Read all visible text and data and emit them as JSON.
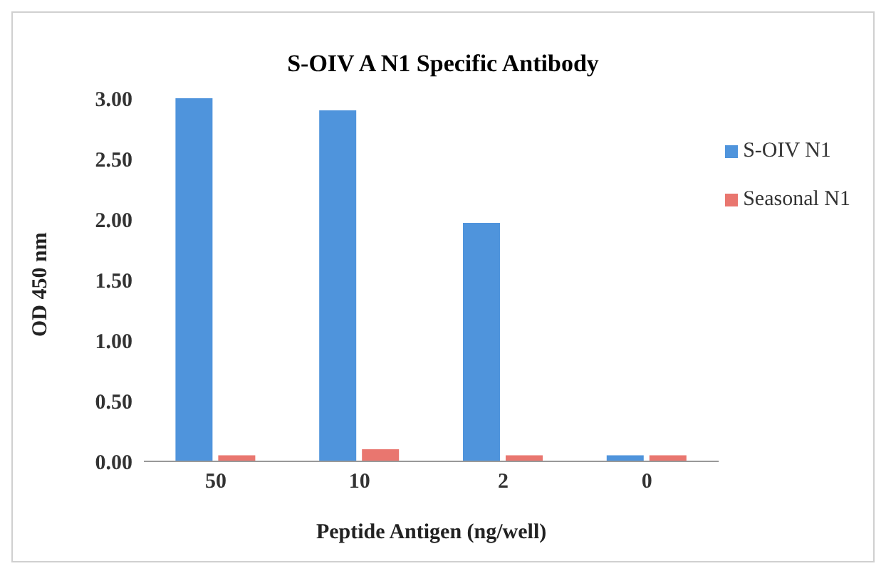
{
  "chart_data": {
    "type": "bar",
    "title": "S-OIV A N1 Specific Antibody",
    "xlabel": "Peptide Antigen (ng/well)",
    "ylabel": "OD 450 nm",
    "categories": [
      "50",
      "10",
      "2",
      "0"
    ],
    "series": [
      {
        "name": "S-OIV N1",
        "color": "#4f94dc",
        "values": [
          3.0,
          2.9,
          1.97,
          0.05
        ]
      },
      {
        "name": "Seasonal N1",
        "color": "#e9766f",
        "values": [
          0.05,
          0.1,
          0.05,
          0.05
        ]
      }
    ],
    "ylim": [
      0,
      3
    ],
    "yticks": [
      {
        "value": 0,
        "label": "0.00"
      },
      {
        "value": 0.5,
        "label": "0.50"
      },
      {
        "value": 1,
        "label": "1.00"
      },
      {
        "value": 1.5,
        "label": "1.50"
      },
      {
        "value": 2,
        "label": "2.00"
      },
      {
        "value": 2.5,
        "label": "2.50"
      },
      {
        "value": 3,
        "label": "3.00"
      }
    ],
    "legend": "top right"
  }
}
